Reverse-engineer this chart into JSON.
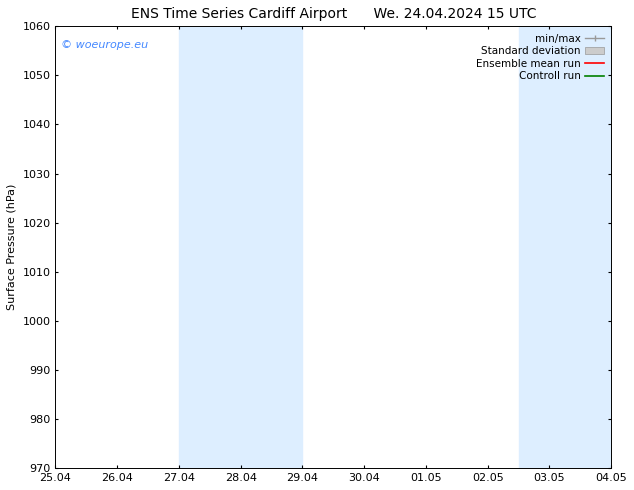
{
  "title_left": "ENS Time Series Cardiff Airport",
  "title_right": "We. 24.04.2024 15 UTC",
  "ylabel": "Surface Pressure (hPa)",
  "ylim": [
    970,
    1060
  ],
  "yticks": [
    970,
    980,
    990,
    1000,
    1010,
    1020,
    1030,
    1040,
    1050,
    1060
  ],
  "xtick_labels": [
    "25.04",
    "26.04",
    "27.04",
    "28.04",
    "29.04",
    "30.04",
    "01.05",
    "02.05",
    "03.05",
    "04.05"
  ],
  "xlim": [
    0,
    9
  ],
  "shaded_bands": [
    {
      "xmin": 2.0,
      "xmax": 4.0
    },
    {
      "xmin": 7.5,
      "xmax": 9.0
    }
  ],
  "shade_color": "#ddeeff",
  "watermark_text": "© woeurope.eu",
  "watermark_color": "#4488ff",
  "legend_labels": [
    "min/max",
    "Standard deviation",
    "Ensemble mean run",
    "Controll run"
  ],
  "legend_colors": [
    "#999999",
    "#cccccc",
    "#ff0000",
    "#008000"
  ],
  "bg_color": "#ffffff",
  "title_fontsize": 10,
  "axis_label_fontsize": 8,
  "tick_fontsize": 8,
  "legend_fontsize": 7.5,
  "watermark_fontsize": 8
}
